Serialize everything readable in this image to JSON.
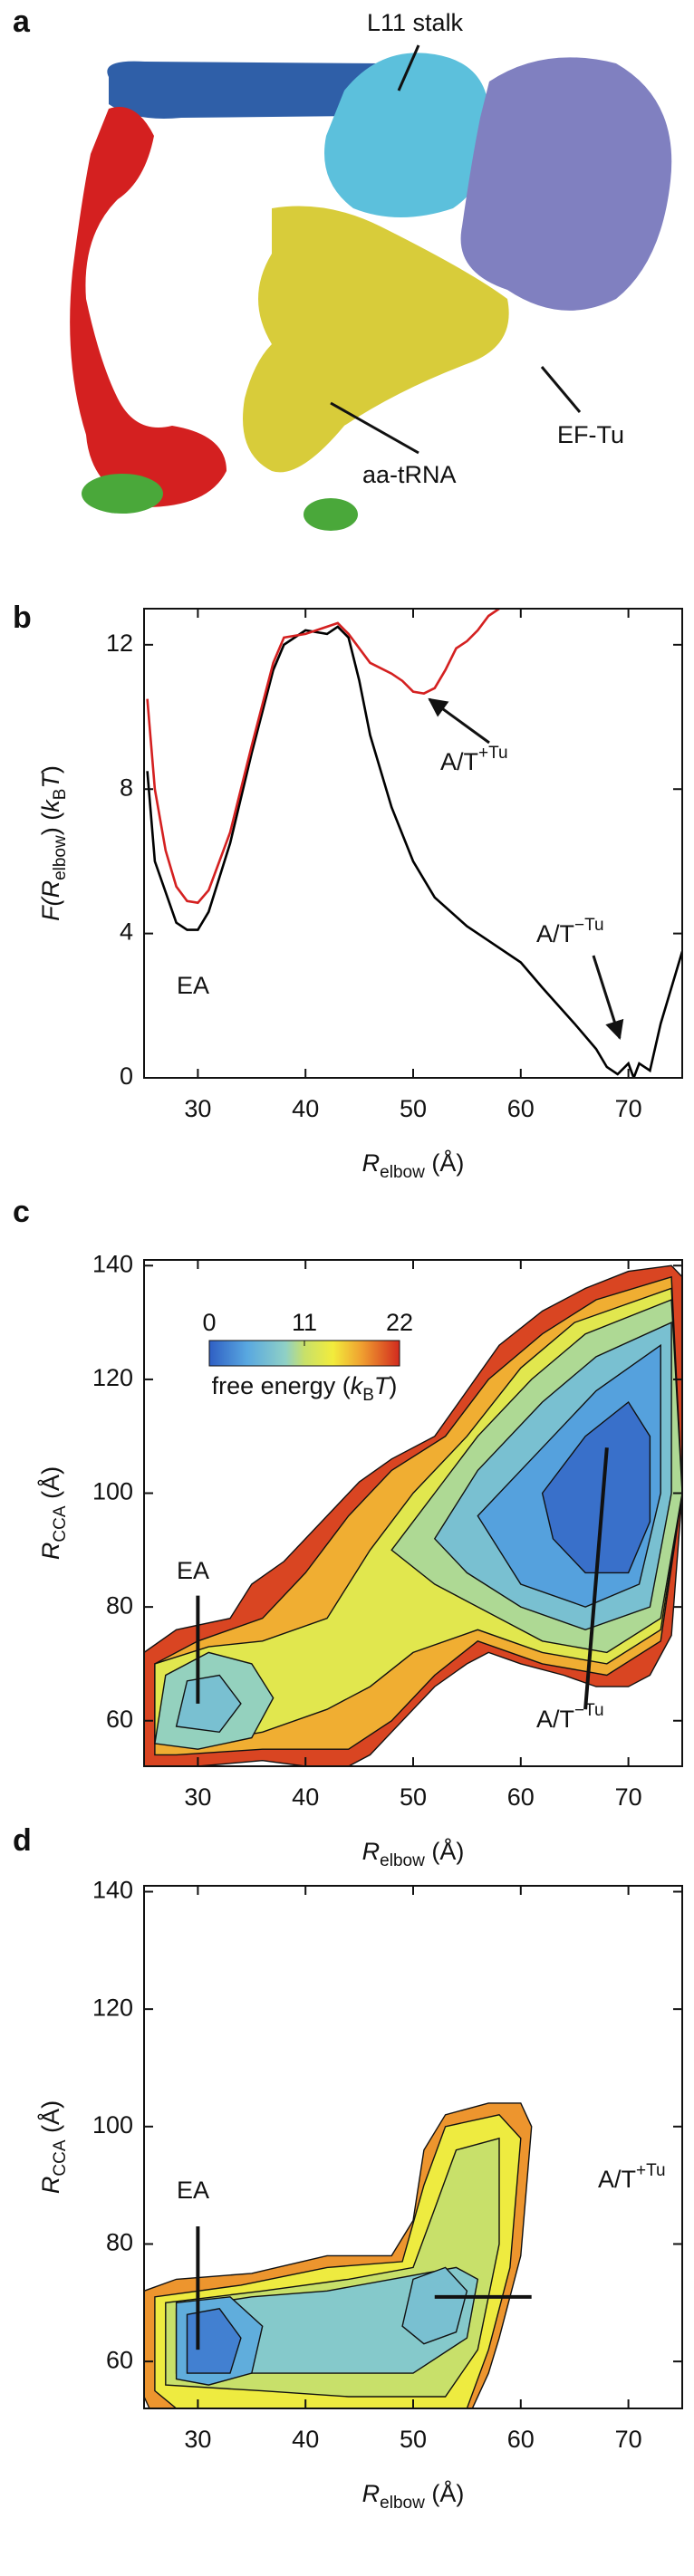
{
  "figure": {
    "panel_labels": [
      "a",
      "b",
      "c",
      "d"
    ],
    "structure_labels": [
      "L11 stalk",
      "aa-tRNA",
      "EF-Tu"
    ]
  },
  "chart_data": [
    {
      "type": "line",
      "xlim": [
        25,
        75
      ],
      "xticks": [
        30,
        40,
        50,
        60,
        70
      ],
      "ylim": [
        0,
        13
      ],
      "yticks": [
        0,
        4,
        8,
        12
      ],
      "xlabel": [
        "R",
        "elbow",
        " (Å)"
      ],
      "ylabel": [
        "F(",
        "R",
        "elbow",
        ") (",
        "k",
        "B",
        "T",
        ")"
      ],
      "series": [
        {
          "color": "#000000",
          "x": [
            25.3,
            26,
            28,
            29,
            30,
            31,
            33,
            35,
            37,
            38,
            40,
            42,
            43,
            44,
            45,
            46,
            48,
            50,
            52,
            55,
            57,
            60,
            62,
            65,
            67,
            68,
            69,
            70,
            70.5,
            71,
            72,
            73,
            74,
            75
          ],
          "values": [
            8.5,
            6,
            4.3,
            4.1,
            4.1,
            4.6,
            6.5,
            9,
            11.3,
            12,
            12.4,
            12.3,
            12.5,
            12.2,
            11,
            9.5,
            7.5,
            6,
            5,
            4.2,
            3.8,
            3.2,
            2.5,
            1.5,
            0.8,
            0.3,
            0.1,
            0.4,
            0,
            0.4,
            0.2,
            1.5,
            2.5,
            3.5
          ]
        },
        {
          "color": "#d42020",
          "x": [
            25.3,
            26,
            27,
            28,
            29,
            30,
            31,
            33,
            35,
            37,
            38,
            40,
            42,
            43,
            44,
            46,
            48,
            49,
            50,
            51,
            52,
            53,
            54,
            55,
            56,
            57,
            58
          ],
          "values": [
            10.5,
            8,
            6.3,
            5.3,
            4.9,
            4.85,
            5.2,
            6.8,
            9.2,
            11.5,
            12.2,
            12.3,
            12.5,
            12.6,
            12.3,
            11.5,
            11.2,
            11,
            10.7,
            10.65,
            10.8,
            11.3,
            11.9,
            12.1,
            12.4,
            12.8,
            13
          ]
        }
      ],
      "annotations": [
        [
          "EA"
        ],
        [
          "A/T",
          "+Tu"
        ],
        [
          "A/T",
          "−Tu"
        ]
      ]
    },
    {
      "type": "contour",
      "xlim": [
        25,
        75
      ],
      "xticks": [
        30,
        40,
        50,
        60,
        70
      ],
      "ylim": [
        52,
        141
      ],
      "yticks": [
        60,
        80,
        100,
        120,
        140
      ],
      "xlabel": [
        "R",
        "elbow",
        " (Å)"
      ],
      "ylabel": [
        "R",
        "CCA",
        " (Å)"
      ],
      "colorbar": {
        "clim": [
          0,
          22
        ],
        "ticks": [
          0,
          11,
          22
        ],
        "label": [
          "free energy (",
          "k",
          "B",
          "T",
          ")"
        ]
      },
      "regions": [
        {
          "level": 21,
          "x": [
            25,
            25,
            28,
            33,
            35,
            38,
            42,
            45,
            48,
            52,
            55,
            58,
            62,
            66,
            70,
            74,
            75,
            75,
            74,
            72,
            70,
            67,
            64,
            60,
            57,
            55,
            52,
            50,
            48,
            46,
            44,
            40,
            36,
            30,
            26
          ],
          "y": [
            50,
            72,
            76,
            78,
            84,
            88,
            96,
            102,
            106,
            110,
            118,
            126,
            132,
            136,
            139,
            140,
            138,
            100,
            75,
            68,
            66,
            66,
            68,
            70,
            72,
            70,
            66,
            62,
            58,
            54,
            52,
            52,
            53,
            52,
            52
          ]
        },
        {
          "level": 17,
          "x": [
            26,
            26,
            30,
            36,
            40,
            44,
            48,
            53,
            57,
            62,
            67,
            74,
            75,
            73,
            68,
            62,
            56,
            52,
            48,
            44,
            36,
            28
          ],
          "y": [
            54,
            70,
            74,
            78,
            86,
            96,
            104,
            110,
            120,
            128,
            134,
            138,
            100,
            74,
            68,
            70,
            74,
            68,
            60,
            55,
            55,
            54
          ]
        },
        {
          "level": 13,
          "x": [
            26,
            26,
            31,
            36,
            42,
            46,
            50,
            55,
            60,
            65,
            74,
            75,
            73,
            68,
            62,
            56,
            50,
            46,
            42,
            36,
            30
          ],
          "y": [
            56,
            70,
            73,
            74,
            78,
            90,
            100,
            110,
            122,
            130,
            136,
            100,
            76,
            70,
            72,
            76,
            72,
            66,
            62,
            58,
            56
          ]
        },
        {
          "level": 10,
          "x": [
            48,
            52,
            56,
            61,
            66,
            74,
            75,
            73,
            68,
            62,
            56,
            52
          ],
          "y": [
            90,
            100,
            110,
            120,
            128,
            134,
            100,
            78,
            72,
            74,
            80,
            84
          ]
        },
        {
          "level": 7,
          "x": [
            52,
            56,
            62,
            67,
            74,
            74,
            72,
            66,
            60,
            55
          ],
          "y": [
            92,
            104,
            116,
            124,
            130,
            100,
            80,
            76,
            80,
            86
          ]
        },
        {
          "level": 4,
          "x": [
            56,
            62,
            67,
            73,
            73,
            71,
            66,
            60
          ],
          "y": [
            96,
            108,
            118,
            126,
            100,
            84,
            80,
            84
          ]
        },
        {
          "level": 1,
          "x": [
            62,
            66,
            70,
            72,
            72,
            70,
            66,
            63
          ],
          "y": [
            100,
            110,
            116,
            110,
            95,
            86,
            86,
            92
          ]
        },
        {
          "level": 9,
          "x": [
            26,
            27,
            31,
            35,
            37,
            35,
            30
          ],
          "y": [
            56,
            68,
            72,
            70,
            64,
            57,
            55
          ]
        },
        {
          "level": 7,
          "x": [
            28,
            29,
            32,
            34,
            32
          ],
          "y": [
            59,
            67,
            68,
            63,
            58
          ]
        }
      ],
      "annotations": [
        [
          "EA"
        ],
        [
          "A/T",
          "−Tu"
        ]
      ]
    },
    {
      "type": "contour",
      "xlim": [
        25,
        75
      ],
      "xticks": [
        30,
        40,
        50,
        60,
        70
      ],
      "ylim": [
        52,
        141
      ],
      "yticks": [
        60,
        80,
        100,
        120,
        140
      ],
      "xlabel": [
        "R",
        "elbow",
        " (Å)"
      ],
      "ylabel": [
        "R",
        "CCA",
        " (Å)"
      ],
      "regions": [
        {
          "level": 18,
          "x": [
            25,
            25,
            28,
            35,
            42,
            48,
            50,
            51,
            53,
            57,
            60,
            61,
            60,
            58,
            57,
            55,
            52,
            45,
            40,
            30,
            26
          ],
          "y": [
            54,
            72,
            74,
            75,
            78,
            78,
            84,
            96,
            102,
            104,
            104,
            100,
            78,
            64,
            58,
            50,
            48,
            48,
            50,
            48,
            50
          ]
        },
        {
          "level": 14,
          "x": [
            26,
            26,
            34,
            42,
            49,
            51,
            53,
            58,
            60,
            59,
            57,
            55,
            45,
            35,
            28
          ],
          "y": [
            55,
            71,
            73,
            76,
            77,
            90,
            100,
            102,
            98,
            76,
            62,
            52,
            50,
            52,
            52
          ]
        },
        {
          "level": 11,
          "x": [
            27,
            27,
            36,
            44,
            50,
            52,
            54,
            58,
            58,
            56,
            53,
            44,
            36
          ],
          "y": [
            56,
            70,
            72,
            74,
            76,
            86,
            96,
            98,
            80,
            62,
            54,
            54,
            55
          ]
        },
        {
          "level": 8,
          "x": [
            28,
            28,
            35,
            42,
            48,
            54,
            56,
            55,
            50,
            42,
            36
          ],
          "y": [
            58,
            69,
            71,
            72,
            74,
            76,
            74,
            64,
            58,
            58,
            58
          ]
        },
        {
          "level": 7,
          "x": [
            49,
            50,
            53,
            55,
            54,
            51
          ],
          "y": [
            66,
            74,
            76,
            72,
            65,
            63
          ]
        },
        {
          "level": 5,
          "x": [
            28,
            28,
            33,
            36,
            35,
            31
          ],
          "y": [
            57,
            70,
            71,
            66,
            58,
            56
          ]
        },
        {
          "level": 2,
          "x": [
            29,
            29,
            32,
            34,
            33
          ],
          "y": [
            58,
            68,
            69,
            64,
            58
          ]
        }
      ],
      "annotations": [
        [
          "EA"
        ],
        [
          "A/T",
          "+Tu"
        ]
      ]
    }
  ]
}
